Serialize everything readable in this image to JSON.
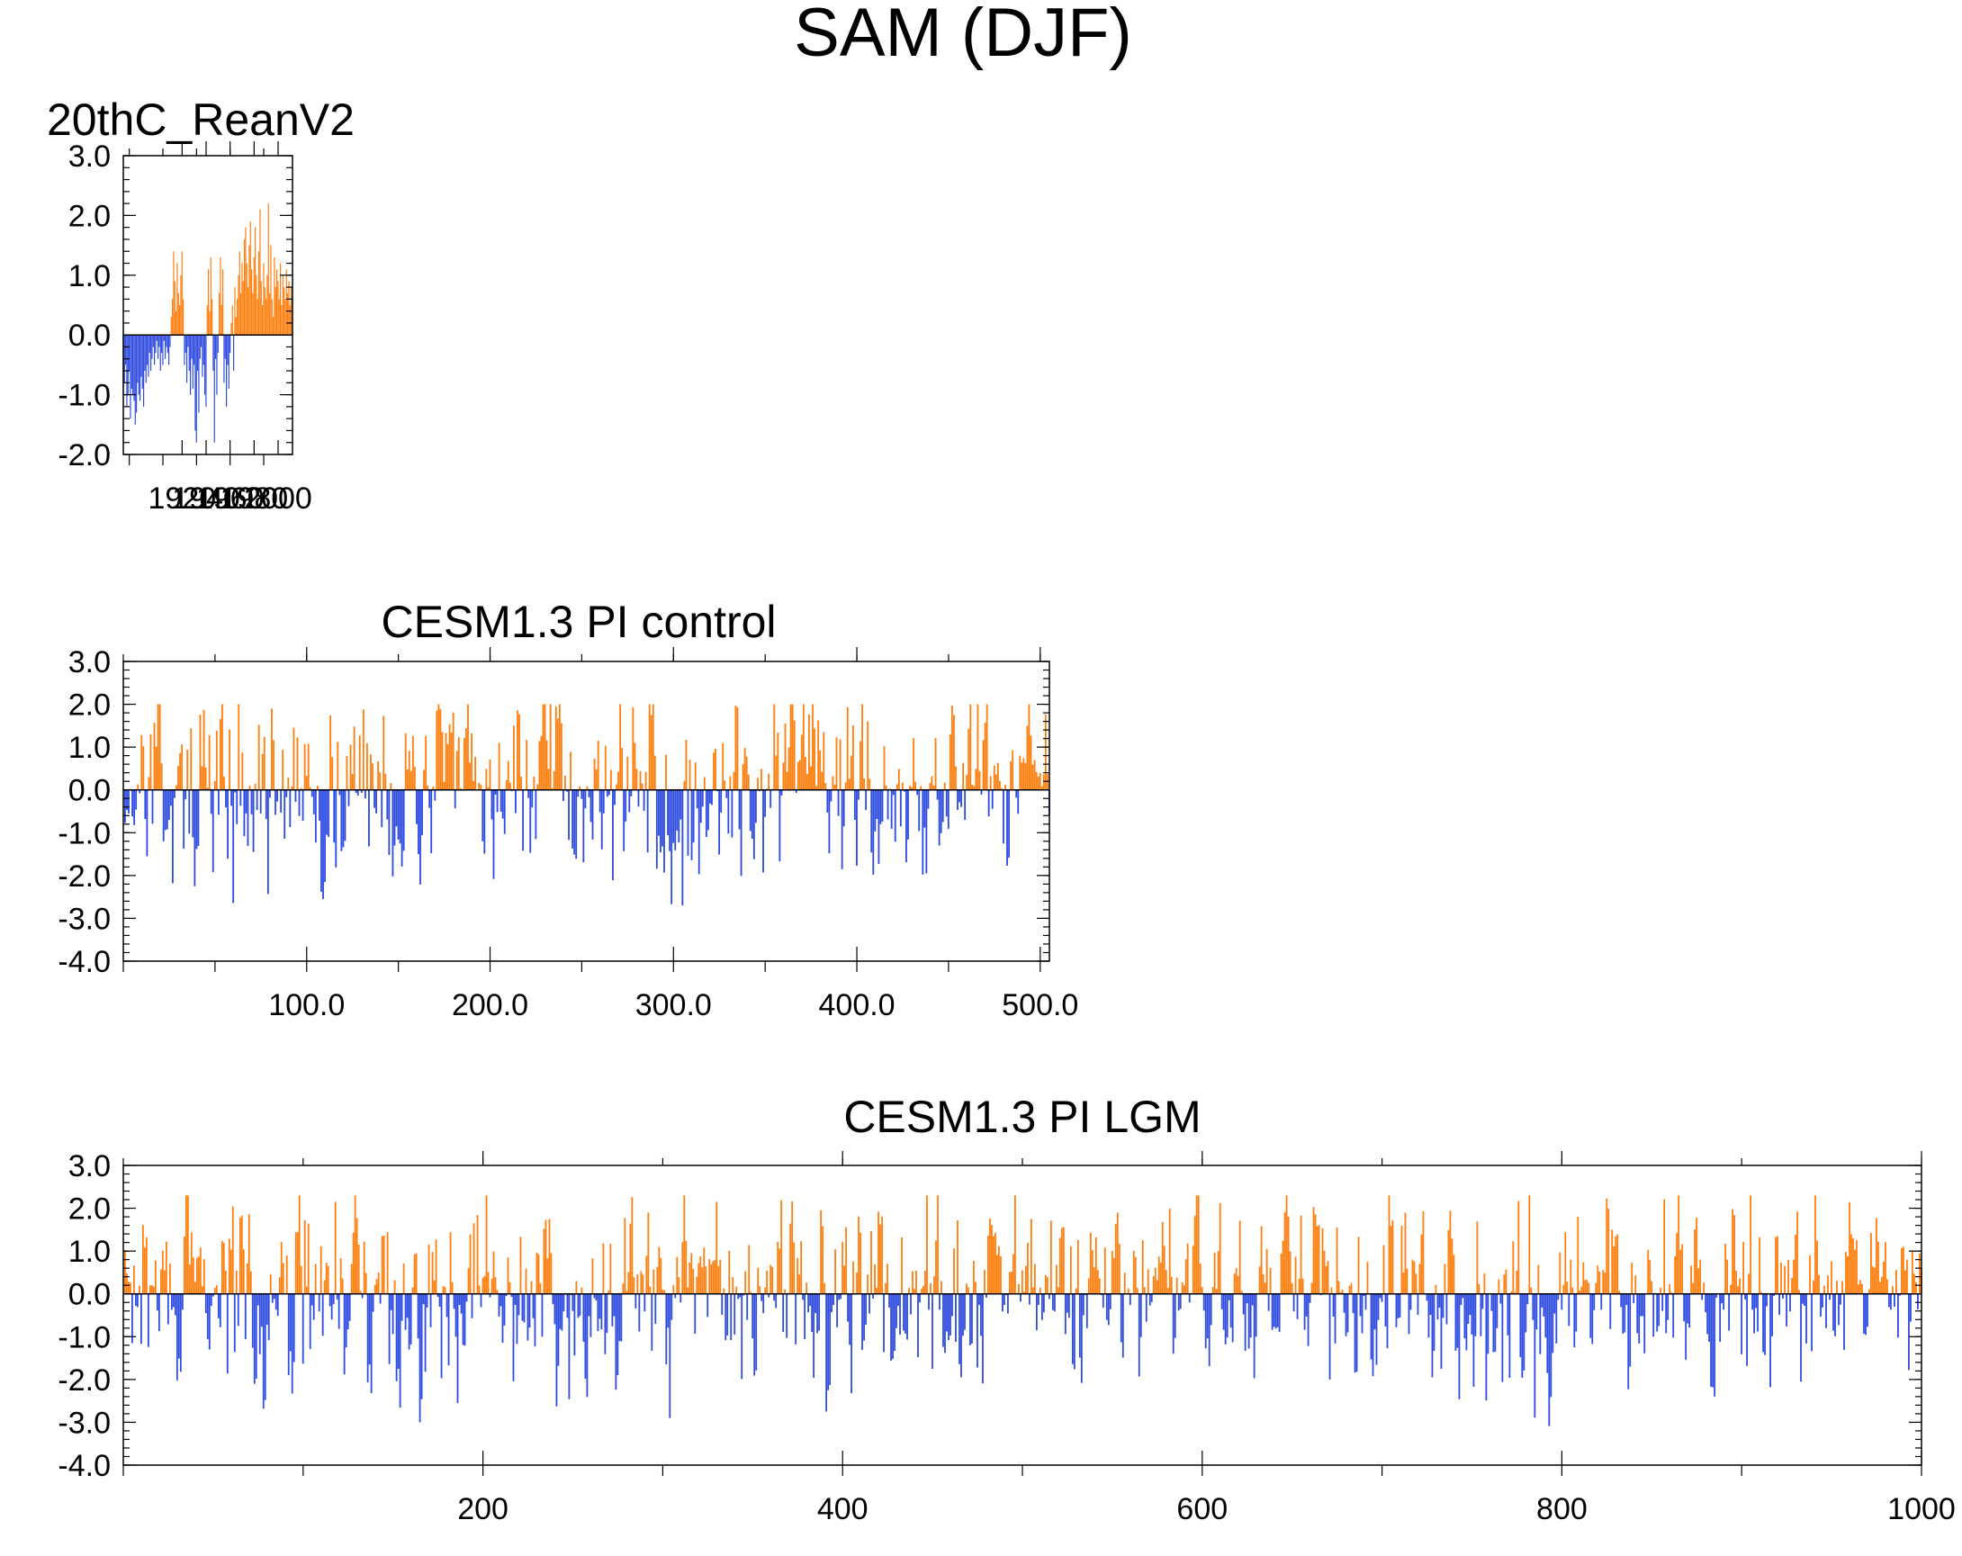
{
  "figure": {
    "title": "SAM (DJF)",
    "colors": {
      "positive": "#ff7f0e",
      "negative": "#2f4ce0",
      "axis": "#000000"
    }
  },
  "chart_data": [
    {
      "type": "bar",
      "title": "20thC_ReanV2",
      "xlabel": "",
      "ylabel": "",
      "xlim": [
        1871,
        2012
      ],
      "ylim": [
        -2.0,
        3.0
      ],
      "yticks": [
        3.0,
        2.0,
        1.0,
        0.0,
        -1.0,
        -2.0
      ],
      "ytick_labels": [
        "3.0",
        "2.0",
        "1.0",
        "0.0",
        "-1.0",
        "-2.0"
      ],
      "xticks": [
        1920,
        1940,
        1960,
        1980,
        2000
      ],
      "xtick_labels": [
        "1920",
        "1940",
        "1960",
        "1980",
        "2000"
      ],
      "x_start": 1871,
      "values": [
        -1.0,
        -0.8,
        -0.5,
        -1.2,
        -1.0,
        -0.6,
        -1.4,
        -0.9,
        -1.0,
        -1.1,
        -1.5,
        -1.3,
        -0.8,
        -1.0,
        -1.1,
        -0.7,
        -0.9,
        -1.2,
        -0.6,
        -0.8,
        -0.5,
        -0.7,
        -0.3,
        -0.6,
        -0.4,
        -0.2,
        -0.5,
        -0.3,
        -0.1,
        -0.4,
        -0.2,
        -0.6,
        -0.3,
        -0.5,
        -0.1,
        -0.4,
        -0.2,
        -0.3,
        -0.5,
        -0.2,
        0.3,
        0.6,
        1.4,
        0.9,
        0.4,
        1.2,
        0.7,
        0.5,
        1.0,
        1.4,
        0.6,
        -0.5,
        -0.3,
        -0.8,
        -0.2,
        -0.6,
        -1.0,
        -0.4,
        -0.9,
        -0.5,
        -1.6,
        -1.8,
        -0.6,
        -1.3,
        -0.4,
        -0.2,
        -0.7,
        -0.5,
        -1.0,
        -1.2,
        0.5,
        1.1,
        0.4,
        1.3,
        0.6,
        -0.6,
        -1.8,
        -0.4,
        -1.0,
        -0.3,
        0.7,
        1.3,
        0.5,
        1.1,
        -0.8,
        -0.4,
        -1.2,
        -0.5,
        -0.9,
        -0.3,
        0.2,
        0.5,
        -0.6,
        0.8,
        0.3,
        0.6,
        1.0,
        1.4,
        0.7,
        1.2,
        0.9,
        1.6,
        1.8,
        1.2,
        0.8,
        1.5,
        1.9,
        1.1,
        0.7,
        1.3,
        1.8,
        1.0,
        0.6,
        1.4,
        2.1,
        0.9,
        0.5,
        1.2,
        0.8,
        0.6,
        1.0,
        2.2,
        0.7,
        1.5,
        0.6,
        0.3,
        1.3,
        0.8,
        1.1,
        0.9,
        0.6,
        1.2,
        0.5,
        1.0,
        0.8,
        0.6,
        1.1,
        0.7,
        0.9,
        0.5,
        0.8,
        0.6
      ]
    },
    {
      "type": "bar",
      "title": "CESM1.3 PI control",
      "xlabel": "",
      "ylabel": "",
      "xlim": [
        0,
        505
      ],
      "ylim": [
        -4.0,
        3.0
      ],
      "yticks": [
        3.0,
        2.0,
        1.0,
        0.0,
        -1.0,
        -2.0,
        -3.0,
        -4.0
      ],
      "ytick_labels": [
        "3.0",
        "2.0",
        "1.0",
        "0.0",
        "-1.0",
        "-2.0",
        "-3.0",
        "-4.0"
      ],
      "xticks": [
        100,
        200,
        300,
        400,
        500
      ],
      "xtick_labels": [
        "100.0",
        "200.0",
        "300.0",
        "400.0",
        "500.0"
      ],
      "n": 505,
      "generator": {
        "amplitude": 1.05,
        "max": 2.0,
        "min": -3.6,
        "seed": 13
      }
    },
    {
      "type": "bar",
      "title": "CESM1.3 PI LGM",
      "xlabel": "",
      "ylabel": "",
      "xlim": [
        0,
        1000
      ],
      "ylim": [
        -4.0,
        3.0
      ],
      "yticks": [
        3.0,
        2.0,
        1.0,
        0.0,
        -1.0,
        -2.0,
        -3.0,
        -4.0
      ],
      "ytick_labels": [
        "3.0",
        "2.0",
        "1.0",
        "0.0",
        "-1.0",
        "-2.0",
        "-3.0",
        "-4.0"
      ],
      "xticks": [
        200,
        400,
        600,
        800,
        1000
      ],
      "xtick_labels": [
        "200",
        "400",
        "600",
        "800",
        "1000"
      ],
      "n": 1000,
      "generator": {
        "amplitude": 1.05,
        "max": 2.3,
        "min": -3.6,
        "seed": 29
      }
    }
  ]
}
